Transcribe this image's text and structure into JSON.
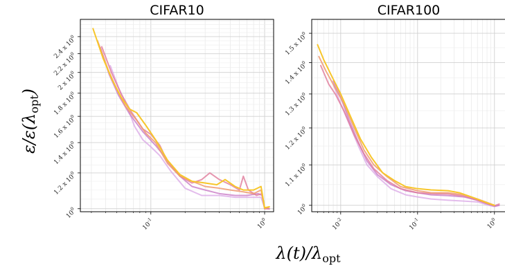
{
  "figure": {
    "xlabel": "λ(t)/λ_opt",
    "ylabel": "ε/ε(λ_opt)"
  },
  "chart_data": [
    {
      "type": "line",
      "title": "CIFAR10",
      "xscale": "log",
      "yscale": "log",
      "xlim": [
        0.024,
        1.2
      ],
      "ylim": [
        0.985,
        2.62
      ],
      "grid": true,
      "x_ticks": [
        {
          "value": 0.1,
          "label": "10^-1"
        },
        {
          "value": 1,
          "label": "10^0"
        }
      ],
      "y_ticks": [
        {
          "value": 1.0,
          "label": "10^0"
        },
        {
          "value": 1.2,
          "label": "1.2 x 10^0"
        },
        {
          "value": 1.4,
          "label": "1.4 x 10^0"
        },
        {
          "value": 1.6,
          "label": "1.6 x 10^0"
        },
        {
          "value": 1.8,
          "label": "1.8 x 10^0"
        },
        {
          "value": 2.0,
          "label": "2 x 10^0"
        },
        {
          "value": 2.2,
          "label": "2.2 x 10^0"
        },
        {
          "value": 2.4,
          "label": "2.4 x 10^0"
        }
      ],
      "series": [
        {
          "color": "#d9a6e6",
          "opacity": 0.75,
          "points": [
            [
              0.044,
              2.07
            ],
            [
              0.052,
              1.85
            ],
            [
              0.062,
              1.68
            ],
            [
              0.072,
              1.52
            ],
            [
              0.085,
              1.42
            ],
            [
              0.1,
              1.37
            ],
            [
              0.12,
              1.31
            ],
            [
              0.15,
              1.21
            ],
            [
              0.2,
              1.11
            ],
            [
              0.28,
              1.07
            ],
            [
              0.4,
              1.07
            ],
            [
              0.55,
              1.06
            ],
            [
              0.75,
              1.06
            ],
            [
              0.93,
              1.06
            ],
            [
              1.0,
              1.005
            ],
            [
              1.1,
              1.0
            ]
          ]
        },
        {
          "color": "#c97cc7",
          "opacity": 0.8,
          "points": [
            [
              0.036,
              2.27
            ],
            [
              0.043,
              1.98
            ],
            [
              0.052,
              1.78
            ],
            [
              0.065,
              1.62
            ],
            [
              0.085,
              1.48
            ],
            [
              0.11,
              1.38
            ],
            [
              0.14,
              1.28
            ],
            [
              0.18,
              1.18
            ],
            [
              0.23,
              1.12
            ],
            [
              0.3,
              1.1
            ],
            [
              0.4,
              1.08
            ],
            [
              0.55,
              1.07
            ],
            [
              0.7,
              1.07
            ],
            [
              0.88,
              1.08
            ],
            [
              0.95,
              1.07
            ],
            [
              1.0,
              1.005
            ],
            [
              1.1,
              1.0
            ]
          ]
        },
        {
          "color": "#e07a9a",
          "opacity": 0.8,
          "points": [
            [
              0.037,
              2.28
            ],
            [
              0.045,
              2.0
            ],
            [
              0.055,
              1.79
            ],
            [
              0.068,
              1.63
            ],
            [
              0.085,
              1.5
            ],
            [
              0.1,
              1.46
            ],
            [
              0.12,
              1.38
            ],
            [
              0.14,
              1.27
            ],
            [
              0.18,
              1.18
            ],
            [
              0.23,
              1.14
            ],
            [
              0.28,
              1.16
            ],
            [
              0.33,
              1.2
            ],
            [
              0.4,
              1.16
            ],
            [
              0.5,
              1.13
            ],
            [
              0.6,
              1.1
            ],
            [
              0.65,
              1.18
            ],
            [
              0.72,
              1.1
            ],
            [
              0.85,
              1.07
            ],
            [
              0.95,
              1.08
            ],
            [
              1.0,
              1.0
            ],
            [
              1.1,
              1.0
            ]
          ]
        },
        {
          "color": "#ee9a72",
          "opacity": 0.85,
          "points": [
            [
              0.034,
              2.35
            ],
            [
              0.042,
              2.03
            ],
            [
              0.05,
              1.84
            ],
            [
              0.06,
              1.68
            ],
            [
              0.075,
              1.57
            ],
            [
              0.09,
              1.47
            ],
            [
              0.11,
              1.4
            ],
            [
              0.14,
              1.26
            ],
            [
              0.18,
              1.18
            ],
            [
              0.23,
              1.15
            ],
            [
              0.3,
              1.12
            ],
            [
              0.4,
              1.11
            ],
            [
              0.5,
              1.1
            ],
            [
              0.65,
              1.09
            ],
            [
              0.8,
              1.08
            ],
            [
              0.93,
              1.1
            ],
            [
              1.0,
              1.0
            ],
            [
              1.1,
              1.01
            ]
          ]
        },
        {
          "color": "#f7c62a",
          "opacity": 1,
          "points": [
            [
              0.031,
              2.5
            ],
            [
              0.038,
              2.15
            ],
            [
              0.046,
              1.92
            ],
            [
              0.055,
              1.76
            ],
            [
              0.065,
              1.66
            ],
            [
              0.075,
              1.63
            ],
            [
              0.09,
              1.53
            ],
            [
              0.11,
              1.42
            ],
            [
              0.14,
              1.28
            ],
            [
              0.18,
              1.19
            ],
            [
              0.23,
              1.15
            ],
            [
              0.3,
              1.14
            ],
            [
              0.38,
              1.13
            ],
            [
              0.45,
              1.16
            ],
            [
              0.55,
              1.12
            ],
            [
              0.65,
              1.1
            ],
            [
              0.8,
              1.1
            ],
            [
              0.93,
              1.12
            ],
            [
              1.0,
              1.005
            ],
            [
              1.1,
              1.01
            ]
          ]
        }
      ]
    },
    {
      "type": "line",
      "title": "CIFAR100",
      "xscale": "log",
      "yscale": "log",
      "xlim": [
        0.0042,
        1.4
      ],
      "ylim": [
        0.985,
        1.55
      ],
      "grid": true,
      "x_ticks": [
        {
          "value": 0.01,
          "label": "10^-2"
        },
        {
          "value": 0.1,
          "label": "10^-1"
        },
        {
          "value": 1,
          "label": "10^0"
        }
      ],
      "y_ticks": [
        {
          "value": 1.0,
          "label": "10^0"
        },
        {
          "value": 1.1,
          "label": "1.1 x 10^0"
        },
        {
          "value": 1.2,
          "label": "1.2 x 10^0"
        },
        {
          "value": 1.3,
          "label": "1.3 x 10^0"
        },
        {
          "value": 1.4,
          "label": "1.4 x 10^0"
        },
        {
          "value": 1.5,
          "label": "1.5 x 10^0"
        }
      ],
      "series": [
        {
          "color": "#d9a6e6",
          "opacity": 0.75,
          "points": [
            [
              0.008,
              1.33
            ],
            [
              0.01,
              1.27
            ],
            [
              0.013,
              1.21
            ],
            [
              0.017,
              1.15
            ],
            [
              0.022,
              1.1
            ],
            [
              0.03,
              1.07
            ],
            [
              0.045,
              1.04
            ],
            [
              0.07,
              1.025
            ],
            [
              0.1,
              1.02
            ],
            [
              0.15,
              1.015
            ],
            [
              0.25,
              1.012
            ],
            [
              0.4,
              1.01
            ],
            [
              0.6,
              1.008
            ],
            [
              0.85,
              1.0
            ],
            [
              1.0,
              0.997
            ],
            [
              1.15,
              1.0
            ]
          ]
        },
        {
          "color": "#c97cc7",
          "opacity": 0.8,
          "points": [
            [
              0.008,
              1.34
            ],
            [
              0.01,
              1.29
            ],
            [
              0.013,
              1.22
            ],
            [
              0.017,
              1.16
            ],
            [
              0.022,
              1.11
            ],
            [
              0.03,
              1.075
            ],
            [
              0.045,
              1.05
            ],
            [
              0.07,
              1.035
            ],
            [
              0.1,
              1.03
            ],
            [
              0.15,
              1.025
            ],
            [
              0.25,
              1.023
            ],
            [
              0.4,
              1.02
            ],
            [
              0.6,
              1.012
            ],
            [
              0.85,
              1.002
            ],
            [
              1.0,
              0.998
            ],
            [
              1.15,
              1.0
            ]
          ]
        },
        {
          "color": "#e07a9a",
          "opacity": 0.8,
          "points": [
            [
              0.0055,
              1.39
            ],
            [
              0.007,
              1.33
            ],
            [
              0.0085,
              1.3
            ],
            [
              0.011,
              1.25
            ],
            [
              0.015,
              1.18
            ],
            [
              0.02,
              1.13
            ],
            [
              0.027,
              1.09
            ],
            [
              0.04,
              1.06
            ],
            [
              0.06,
              1.04
            ],
            [
              0.1,
              1.03
            ],
            [
              0.15,
              1.028
            ],
            [
              0.25,
              1.027
            ],
            [
              0.4,
              1.022
            ],
            [
              0.6,
              1.012
            ],
            [
              0.85,
              1.003
            ],
            [
              1.0,
              0.999
            ],
            [
              1.15,
              1.003
            ]
          ]
        },
        {
          "color": "#ee9a72",
          "opacity": 0.85,
          "points": [
            [
              0.0052,
              1.42
            ],
            [
              0.0065,
              1.37
            ],
            [
              0.008,
              1.33
            ],
            [
              0.011,
              1.27
            ],
            [
              0.015,
              1.2
            ],
            [
              0.02,
              1.14
            ],
            [
              0.027,
              1.1
            ],
            [
              0.04,
              1.07
            ],
            [
              0.06,
              1.045
            ],
            [
              0.1,
              1.035
            ],
            [
              0.15,
              1.03
            ],
            [
              0.25,
              1.03
            ],
            [
              0.4,
              1.025
            ],
            [
              0.6,
              1.015
            ],
            [
              0.85,
              1.005
            ],
            [
              1.0,
              1.0
            ]
          ]
        },
        {
          "color": "#f7c62a",
          "opacity": 1,
          "points": [
            [
              0.005,
              1.46
            ],
            [
              0.006,
              1.41
            ],
            [
              0.0075,
              1.36
            ],
            [
              0.01,
              1.3
            ],
            [
              0.013,
              1.24
            ],
            [
              0.018,
              1.17
            ],
            [
              0.025,
              1.12
            ],
            [
              0.035,
              1.08
            ],
            [
              0.05,
              1.06
            ],
            [
              0.07,
              1.045
            ],
            [
              0.1,
              1.04
            ],
            [
              0.15,
              1.037
            ],
            [
              0.25,
              1.035
            ],
            [
              0.35,
              1.03
            ],
            [
              0.5,
              1.02
            ],
            [
              0.7,
              1.01
            ],
            [
              0.85,
              1.004
            ],
            [
              1.0,
              1.0
            ]
          ]
        }
      ]
    }
  ]
}
